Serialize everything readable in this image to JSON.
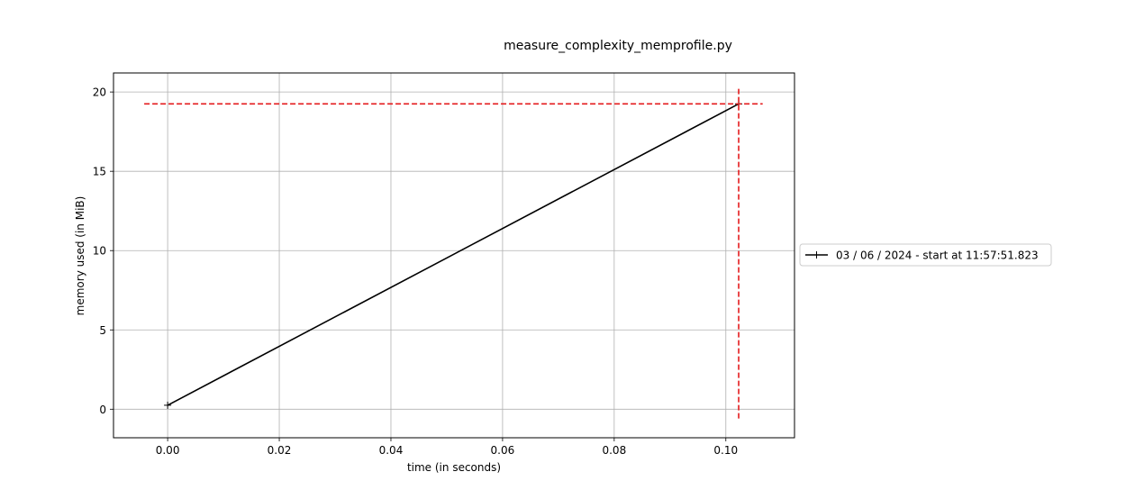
{
  "chart_data": {
    "type": "line",
    "title": "measure_complexity_memprofile.py",
    "xlabel": "time (in seconds)",
    "ylabel": "memory used (in MiB)",
    "xlim": [
      -0.0097,
      0.1123
    ],
    "ylim": [
      -1.8,
      21.2
    ],
    "xticks": [
      0.0,
      0.02,
      0.04,
      0.06,
      0.08,
      0.1
    ],
    "xtick_labels": [
      "0.00",
      "0.02",
      "0.04",
      "0.06",
      "0.08",
      "0.10"
    ],
    "yticks": [
      0,
      5,
      10,
      15,
      20
    ],
    "ytick_labels": [
      "0",
      "5",
      "10",
      "15",
      "20"
    ],
    "grid": true,
    "legend_position": "outside right, vertically centered",
    "series": [
      {
        "name": "03 / 06 / 2024 - start at 11:57:51.823",
        "color": "#000000",
        "marker": "+",
        "x": [
          0.0,
          0.1023
        ],
        "y": [
          0.25,
          19.25
        ]
      }
    ],
    "max_marker": {
      "color": "#e41a1c",
      "style": "dashed",
      "x": 0.1023,
      "y": 19.25,
      "hline_x": [
        -0.0042,
        0.1066
      ],
      "vline_y": [
        -0.7,
        20.2
      ]
    }
  }
}
